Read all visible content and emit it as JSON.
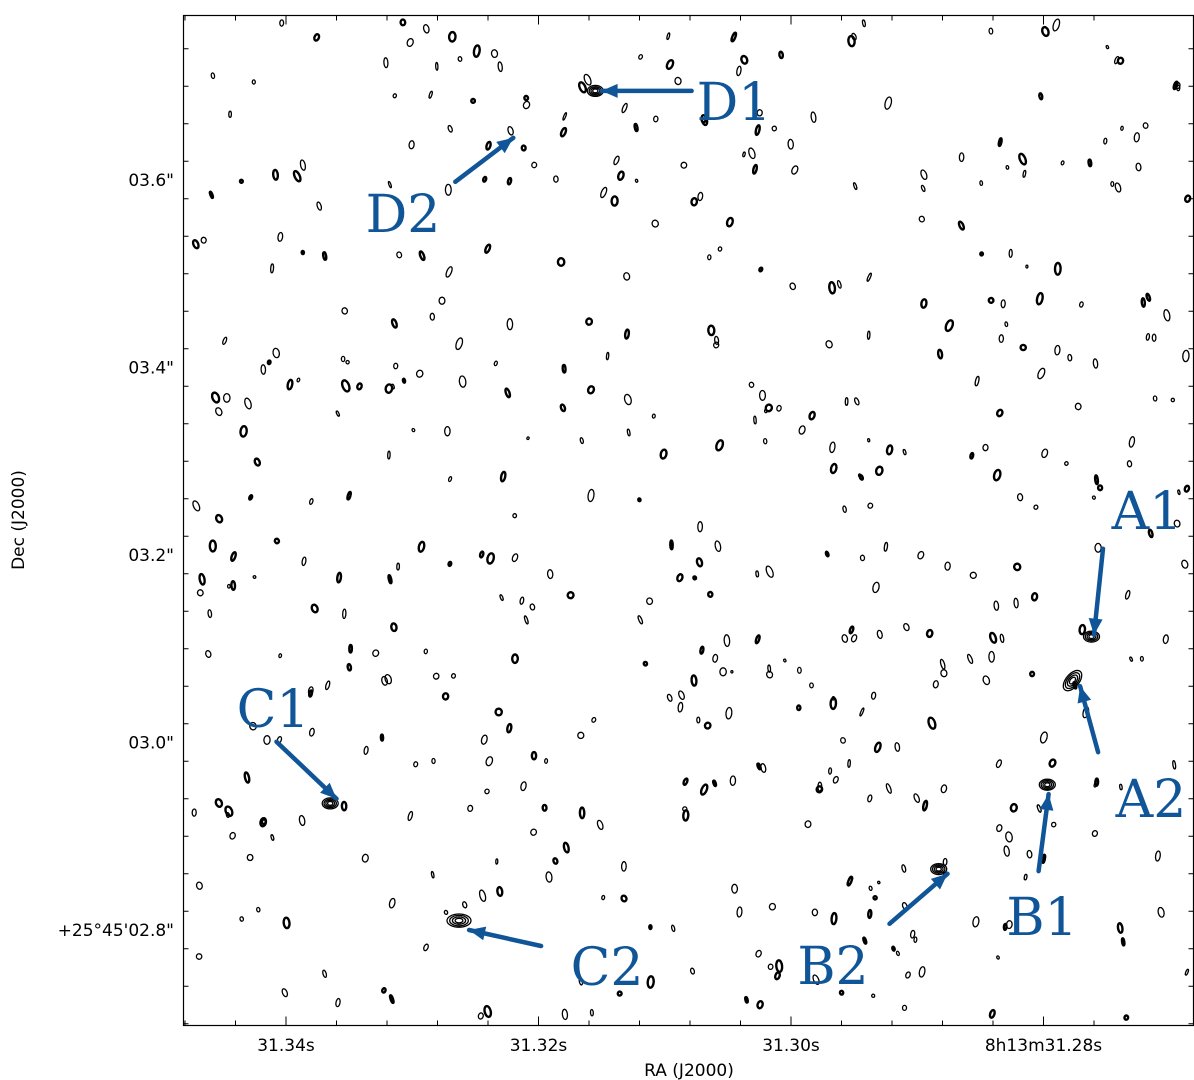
{
  "colors": {
    "annotation": "#0f5597",
    "contour": "#000000",
    "background": "#ffffff"
  },
  "chart_data": {
    "type": "scatter",
    "subtype": "radio-contour-map",
    "xlabel": "RA (J2000)",
    "ylabel": "Dec (J2000)",
    "x_ticks": [
      "31.34s",
      "31.32s",
      "31.30s",
      "8h13m31.28s"
    ],
    "y_ticks": [
      "+25°45'02.8\"",
      "03.0\"",
      "03.2\"",
      "03.4\"",
      "03.6\""
    ],
    "grid": false,
    "legend": "none",
    "annotations": [
      {
        "label": "D1",
        "target_ra_s": 31.315,
        "target_dec_arcsec": 3.695
      },
      {
        "label": "D2",
        "target_ra_s": 31.322,
        "target_dec_arcsec": 3.645
      },
      {
        "label": "C1",
        "target_ra_s": 31.336,
        "target_dec_arcsec": 2.94
      },
      {
        "label": "C2",
        "target_ra_s": 31.3255,
        "target_dec_arcsec": 2.8
      },
      {
        "label": "B1",
        "target_ra_s": 31.2796,
        "target_dec_arcsec": 2.945
      },
      {
        "label": "B2",
        "target_ra_s": 31.2876,
        "target_dec_arcsec": 2.86
      },
      {
        "label": "A1",
        "target_ra_s": 31.276,
        "target_dec_arcsec": 3.115
      },
      {
        "label": "A2",
        "target_ra_s": 31.2771,
        "target_dec_arcsec": 3.06
      }
    ],
    "sources": [
      {
        "label": "D1",
        "ra_s": 31.3155,
        "dec_arcsec": 3.695
      },
      {
        "label": "C1",
        "ra_s": 31.3365,
        "dec_arcsec": 2.935
      },
      {
        "label": "C2",
        "ra_s": 31.3263,
        "dec_arcsec": 2.81
      },
      {
        "label": "B1",
        "ra_s": 31.2797,
        "dec_arcsec": 2.955
      },
      {
        "label": "B2",
        "ra_s": 31.2883,
        "dec_arcsec": 2.865
      },
      {
        "label": "A1",
        "ra_s": 31.2762,
        "dec_arcsec": 3.113
      },
      {
        "label": "A2",
        "ra_s": 31.2777,
        "dec_arcsec": 3.066
      }
    ]
  }
}
